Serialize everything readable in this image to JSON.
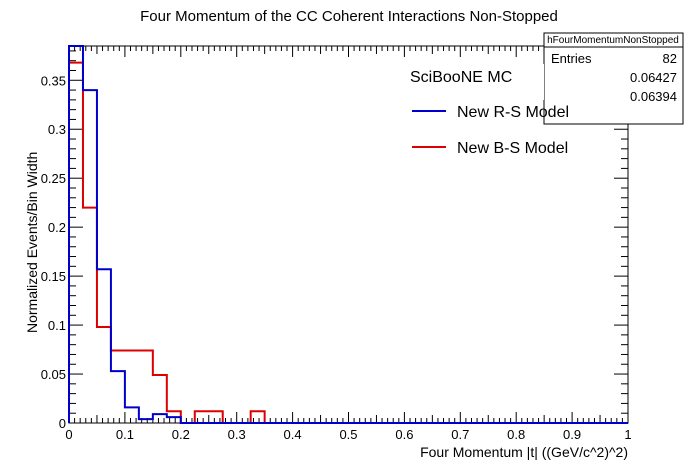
{
  "chart_data": {
    "type": "line",
    "step": true,
    "title": "Four Momentum of the CC Coherent Interactions Non-Stopped",
    "xlabel": "Four Momentum |t| ((GeV/c^2)^2)",
    "ylabel": "Normalized Events/Bin Width",
    "xlim": [
      0,
      1
    ],
    "ylim": [
      0,
      0.385
    ],
    "xticks": [
      "0",
      "0.1",
      "0.2",
      "0.3",
      "0.4",
      "0.5",
      "0.6",
      "0.7",
      "0.8",
      "0.9",
      "1"
    ],
    "yticks": [
      "0",
      "0.05",
      "0.1",
      "0.15",
      "0.2",
      "0.25",
      "0.3",
      "0.35"
    ],
    "grid": false,
    "bin_edges": [
      0,
      0.025,
      0.05,
      0.075,
      0.1,
      0.125,
      0.15,
      0.175,
      0.2,
      0.225,
      0.25,
      0.275,
      0.3,
      0.325,
      0.35,
      0.375,
      0.4,
      0.425,
      0.45,
      0.475,
      0.5,
      0.525,
      0.55,
      0.575,
      0.6,
      0.625,
      0.65,
      0.675,
      0.7,
      0.725,
      0.75,
      0.775,
      0.8,
      0.825,
      0.85,
      0.875,
      0.9,
      0.925,
      0.95,
      0.975,
      1.0
    ],
    "series": [
      {
        "name": "New R-S Model",
        "color": "#0000cc",
        "values": [
          0.385,
          0.34,
          0.157,
          0.053,
          0.016,
          0.004,
          0.009,
          0.006,
          0,
          0,
          0,
          0,
          0,
          0,
          0,
          0,
          0,
          0,
          0,
          0,
          0,
          0,
          0,
          0,
          0,
          0,
          0,
          0,
          0,
          0,
          0,
          0,
          0,
          0,
          0,
          0,
          0,
          0,
          0,
          0
        ]
      },
      {
        "name": "New B-S Model",
        "color": "#dd0000",
        "values": [
          0.368,
          0.22,
          0.098,
          0.074,
          0.074,
          0.074,
          0.049,
          0.012,
          0,
          0.012,
          0.012,
          0,
          0,
          0.012,
          0,
          0,
          0,
          0,
          0,
          0,
          0,
          0,
          0,
          0,
          0,
          0,
          0,
          0,
          0,
          0,
          0,
          0,
          0,
          0,
          0,
          0,
          0,
          0,
          0,
          0
        ]
      }
    ],
    "legend": {
      "header": "SciBooNE MC",
      "placement": "top-right"
    },
    "stats_box": {
      "name": "hFourMomentumNonStopped",
      "entries_label": "Entries",
      "entries": "82",
      "mean": "0.06427",
      "rms": "0.06394"
    }
  }
}
